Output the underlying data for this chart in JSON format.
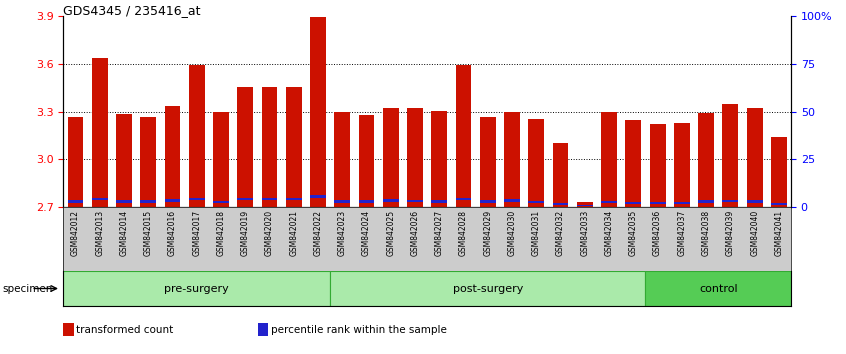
{
  "title": "GDS4345 / 235416_at",
  "samples": [
    "GSM842012",
    "GSM842013",
    "GSM842014",
    "GSM842015",
    "GSM842016",
    "GSM842017",
    "GSM842018",
    "GSM842019",
    "GSM842020",
    "GSM842021",
    "GSM842022",
    "GSM842023",
    "GSM842024",
    "GSM842025",
    "GSM842026",
    "GSM842027",
    "GSM842028",
    "GSM842029",
    "GSM842030",
    "GSM842031",
    "GSM842032",
    "GSM842033",
    "GSM842034",
    "GSM842035",
    "GSM842036",
    "GSM842037",
    "GSM842038",
    "GSM842039",
    "GSM842040",
    "GSM842041"
  ],
  "red_values": [
    3.265,
    3.635,
    3.285,
    3.265,
    3.335,
    3.595,
    3.3,
    3.455,
    3.455,
    3.455,
    3.895,
    3.295,
    3.275,
    3.325,
    3.325,
    3.305,
    3.595,
    3.265,
    3.3,
    3.255,
    3.105,
    2.735,
    3.295,
    3.245,
    3.22,
    3.23,
    3.29,
    3.345,
    3.325,
    3.14
  ],
  "blue_bottoms": [
    2.728,
    2.742,
    2.728,
    2.726,
    2.732,
    2.742,
    2.724,
    2.742,
    2.742,
    2.742,
    2.758,
    2.726,
    2.726,
    2.732,
    2.73,
    2.728,
    2.742,
    2.726,
    2.732,
    2.724,
    2.714,
    2.706,
    2.724,
    2.72,
    2.718,
    2.718,
    2.728,
    2.73,
    2.728,
    2.714
  ],
  "blue_heights": [
    0.016,
    0.018,
    0.016,
    0.016,
    0.016,
    0.018,
    0.016,
    0.018,
    0.018,
    0.018,
    0.02,
    0.016,
    0.016,
    0.016,
    0.016,
    0.016,
    0.018,
    0.016,
    0.016,
    0.014,
    0.013,
    0.01,
    0.014,
    0.014,
    0.014,
    0.014,
    0.016,
    0.016,
    0.016,
    0.012
  ],
  "groups": [
    {
      "label": "pre-surgery",
      "start": 0,
      "end": 11,
      "color": "#aaeaaa"
    },
    {
      "label": "post-surgery",
      "start": 11,
      "end": 24,
      "color": "#aaeaaa"
    },
    {
      "label": "control",
      "start": 24,
      "end": 30,
      "color": "#55cc55"
    }
  ],
  "y_min": 2.7,
  "y_max": 3.9,
  "left_yticks": [
    2.7,
    3.0,
    3.3,
    3.6,
    3.9
  ],
  "right_yticks": [
    0,
    25,
    50,
    75,
    100
  ],
  "right_ytick_labels": [
    "0",
    "25",
    "50",
    "75",
    "100%"
  ],
  "bar_color": "#cc1100",
  "blue_color": "#2222cc",
  "bar_width": 0.65,
  "grid_lines": [
    3.0,
    3.3,
    3.6
  ],
  "legend": [
    {
      "color": "#cc1100",
      "label": "transformed count"
    },
    {
      "color": "#2222cc",
      "label": "percentile rank within the sample"
    }
  ]
}
